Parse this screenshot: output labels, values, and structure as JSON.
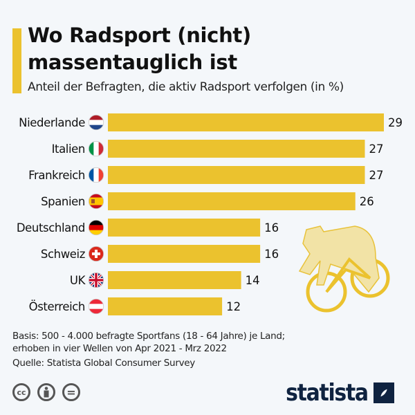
{
  "header": {
    "title_line1": "Wo Radsport (nicht)",
    "title_line2": "massentauglich ist",
    "subtitle": "Anteil der Befragten, die aktiv Radsport verfolgen (in %)"
  },
  "chart_data": {
    "type": "bar",
    "orientation": "horizontal",
    "title": "Wo Radsport (nicht) massentauglich ist",
    "subtitle": "Anteil der Befragten, die aktiv Radsport verfolgen (in %)",
    "categories": [
      "Niederlande",
      "Italien",
      "Frankreich",
      "Spanien",
      "Deutschland",
      "Schweiz",
      "UK",
      "Österreich"
    ],
    "flags": [
      "flag-netherlands",
      "flag-italy",
      "flag-france",
      "flag-spain",
      "flag-germany",
      "flag-switzerland",
      "flag-uk",
      "flag-austria"
    ],
    "values": [
      29,
      27,
      27,
      26,
      16,
      16,
      14,
      12
    ],
    "xlim": [
      0,
      29
    ],
    "grid": false,
    "bar_color": "#ebc22e"
  },
  "footer": {
    "note_line1": "Basis: 500 - 4.000 befragte Sportfans (18 - 64 Jahre) je Land;",
    "note_line2": "erhoben in vier Wellen von Apr 2021 - Mrz 2022",
    "source": "Quelle: Statista Global Consumer Survey",
    "cc_label": "cc",
    "nd_label": "=",
    "brand": "statista"
  },
  "colors": {
    "accent": "#ebc22e",
    "brand": "#0f2340",
    "background": "#f4f7fa",
    "illustration": "#f2e3a6"
  }
}
